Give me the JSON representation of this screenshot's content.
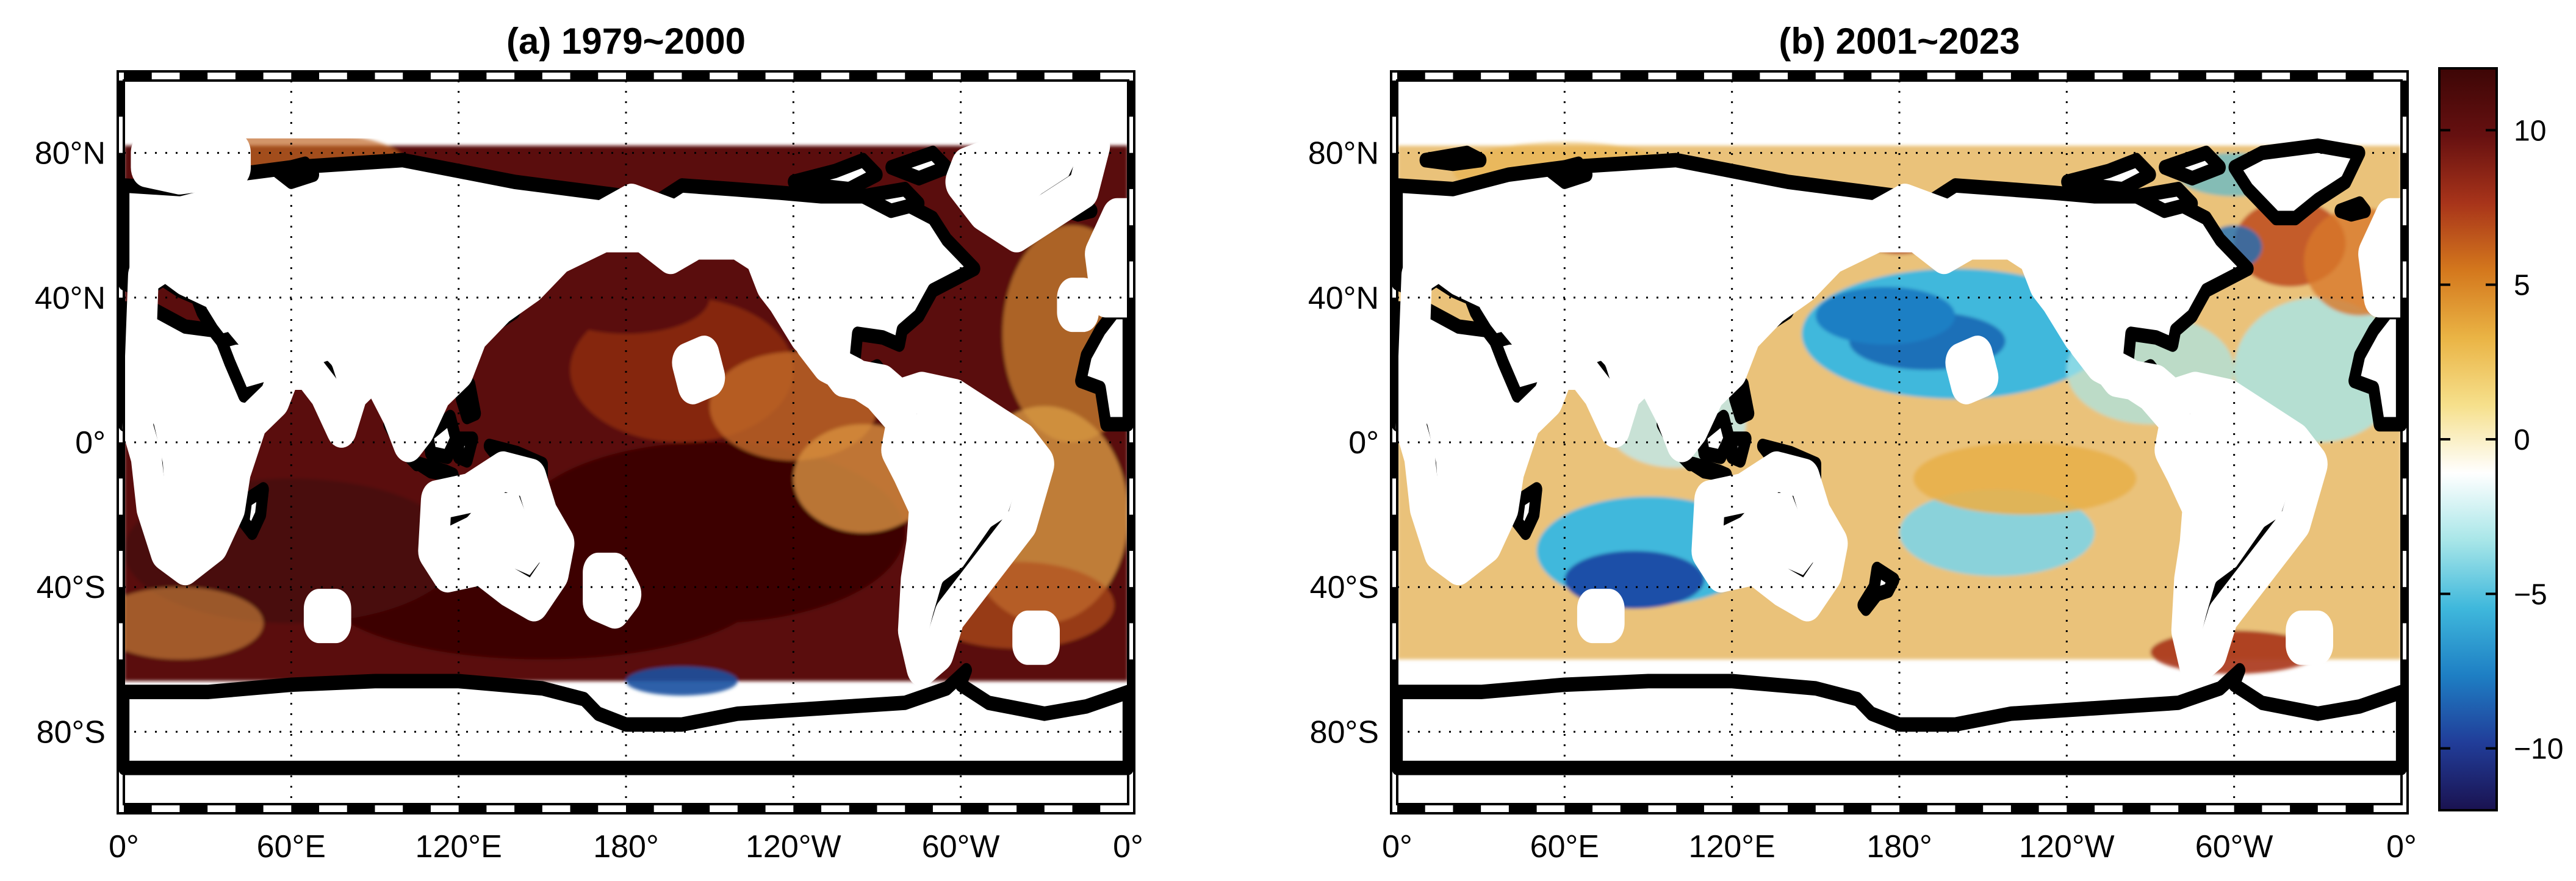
{
  "panels": [
    {
      "id": "a",
      "title": "(a) 1979~2000",
      "regime": "warm"
    },
    {
      "id": "b",
      "title": "(b) 2001~2023",
      "regime": "mixed"
    }
  ],
  "axes": {
    "lat_ticks": [
      {
        "label": "80°N",
        "lat": 80
      },
      {
        "label": "40°N",
        "lat": 40
      },
      {
        "label": "0°",
        "lat": 0
      },
      {
        "label": "40°S",
        "lat": -40
      },
      {
        "label": "80°S",
        "lat": -80
      }
    ],
    "lon_ticks": [
      {
        "label": "0°",
        "lon": 0
      },
      {
        "label": "60°E",
        "lon": 60
      },
      {
        "label": "120°E",
        "lon": 120
      },
      {
        "label": "180°",
        "lon": 180
      },
      {
        "label": "120°W",
        "lon": 240
      },
      {
        "label": "60°W",
        "lon": 300
      },
      {
        "label": "0°",
        "lon": 360
      }
    ],
    "lat_range": [
      -100,
      100
    ],
    "lon_range": [
      0,
      360
    ],
    "grid": true
  },
  "colorbar": {
    "range": [
      -12,
      12
    ],
    "ticks": [
      {
        "label": "10",
        "value": 10
      },
      {
        "label": "5",
        "value": 5
      },
      {
        "label": "0",
        "value": 0
      },
      {
        "label": "−5",
        "value": -5
      },
      {
        "label": "−10",
        "value": -10
      }
    ],
    "stops": [
      "#1a1250",
      "#213d99",
      "#1e7fc4",
      "#3fb8dc",
      "#a8e6e8",
      "#ffffff",
      "#f6e08c",
      "#eab445",
      "#d4781d",
      "#a8341a",
      "#661010",
      "#3d0606"
    ]
  },
  "colors": {
    "frame": "#000000",
    "significance_contour": "#ffffff",
    "land": "#ffffff"
  }
}
